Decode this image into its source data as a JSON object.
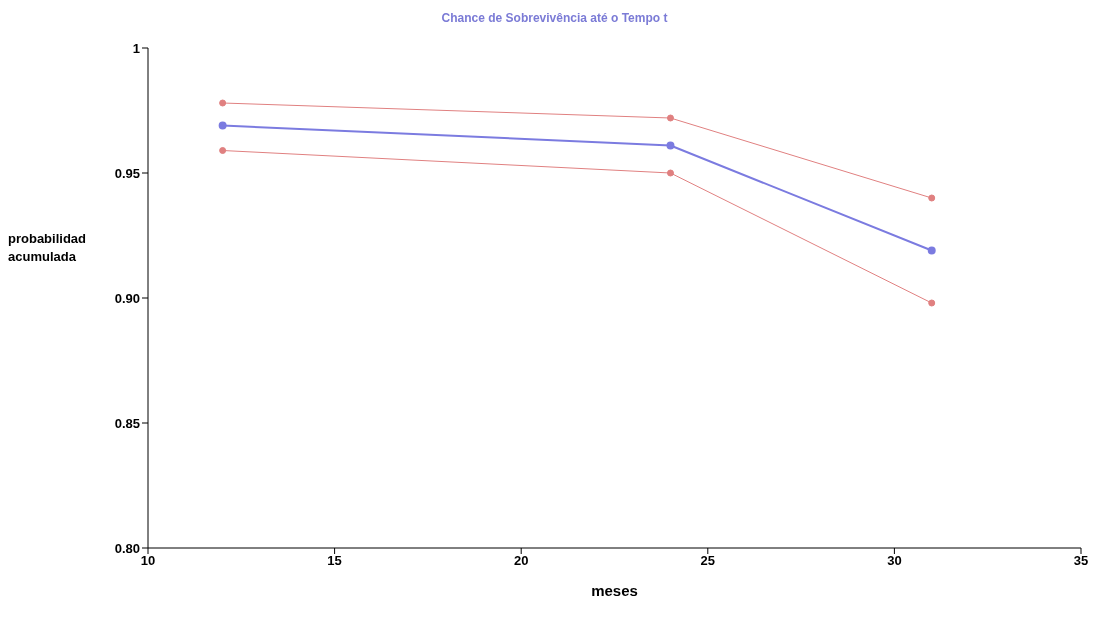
{
  "chart_data": {
    "type": "line",
    "title": "Chance de Sobrevivência até o Tempo t",
    "xlabel": "meses",
    "ylabel": "probabilidad acumulada",
    "x": [
      12,
      24,
      31
    ],
    "series": [
      {
        "color": "#e08080",
        "values": [
          0.978,
          0.972,
          0.94
        ]
      },
      {
        "color": "#7b7be0",
        "values": [
          0.969,
          0.961,
          0.919
        ]
      },
      {
        "color": "#e08080",
        "values": [
          0.959,
          0.95,
          0.898
        ]
      }
    ],
    "xlim": [
      10,
      35
    ],
    "xticks": [
      10,
      15,
      20,
      25,
      30,
      35
    ],
    "ylim": [
      0.8,
      1
    ],
    "yticks": [
      {
        "value": 0.8,
        "label": "0.80"
      },
      0.85,
      {
        "value": 0.9,
        "label": "0.90"
      },
      0.95,
      1
    ],
    "grid": false,
    "legend": false,
    "marker": "circle",
    "line_style": "solid"
  }
}
